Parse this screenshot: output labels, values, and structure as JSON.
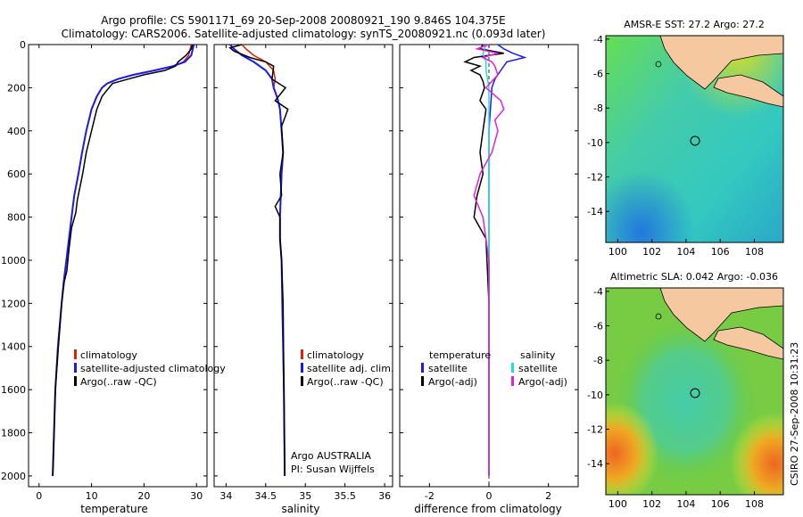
{
  "title": {
    "line1": "Argo profile: CS 5901171_69 20-Sep-2008 20080921_190 9.846S 104.375E",
    "line2": "Climatology: CARS2006. Satellite-adjusted climatology: synTS_20080921.nc (0.093d later)"
  },
  "side_label": "CSIRO 27-Sep-2008 10:31:23",
  "colors": {
    "clim": "#dd2200",
    "sat": "#1a1aee",
    "argo": "#000000",
    "sat_diff": "#22dddd",
    "argo_diff": "#dd22dd"
  },
  "chart_data": [
    {
      "type": "line",
      "name": "temperature-profile",
      "xlabel": "temperature",
      "xlim": [
        -2,
        32
      ],
      "ylim": [
        2050,
        0
      ],
      "xticks": [
        0,
        10,
        20,
        30
      ],
      "yticks": [
        0,
        200,
        400,
        600,
        800,
        1000,
        1200,
        1400,
        1600,
        1800,
        2000
      ],
      "legend": [
        "climatology",
        "satellite-adjusted climatology",
        "Argo(..raw -QC)"
      ],
      "series": [
        {
          "name": "climatology",
          "color": "clim",
          "x": [
            29,
            28.8,
            28.5,
            27.5,
            25.5,
            22,
            18,
            15,
            13,
            12,
            11,
            10,
            9,
            8.2,
            7.5,
            6.7,
            6.2,
            5.7,
            5.2,
            4.7,
            4.3,
            3.6,
            3.1,
            2.6
          ],
          "y": [
            0,
            20,
            50,
            80,
            100,
            120,
            140,
            160,
            180,
            200,
            240,
            300,
            400,
            500,
            600,
            700,
            800,
            900,
            1000,
            1100,
            1200,
            1400,
            1600,
            2000
          ]
        },
        {
          "name": "satellite-adjusted climatology",
          "color": "sat",
          "x": [
            29.5,
            29.3,
            29.0,
            27.8,
            25.5,
            22,
            18,
            15,
            13,
            12,
            11,
            10,
            9,
            8.2,
            7.5,
            6.7,
            6.2,
            5.7,
            5.2,
            4.7,
            4.3,
            3.6,
            3.1,
            2.6
          ],
          "y": [
            0,
            20,
            50,
            80,
            100,
            120,
            140,
            160,
            180,
            200,
            240,
            300,
            400,
            500,
            600,
            700,
            800,
            900,
            1000,
            1100,
            1200,
            1400,
            1600,
            2000
          ]
        },
        {
          "name": "Argo",
          "color": "argo",
          "x": [
            29.2,
            29,
            28,
            26.5,
            26,
            24,
            20,
            17,
            14,
            13,
            12,
            11,
            10,
            9,
            8.3,
            7.3,
            7,
            6.2,
            5.7,
            5.3,
            4.8,
            4.3,
            3.7,
            3.1,
            2.6
          ],
          "y": [
            0,
            20,
            50,
            80,
            100,
            120,
            140,
            160,
            180,
            210,
            240,
            300,
            400,
            500,
            600,
            720,
            780,
            850,
            950,
            1050,
            1100,
            1200,
            1400,
            1600,
            2000
          ]
        }
      ]
    },
    {
      "type": "line",
      "name": "salinity-profile",
      "xlabel": "salinity",
      "xlim": [
        33.85,
        36.1
      ],
      "ylim": [
        2050,
        0
      ],
      "xticks": [
        34,
        34.5,
        35,
        35.5,
        36
      ],
      "legend": [
        "climatology",
        "satellite adj. clim.",
        "Argo(..raw -QC)"
      ],
      "annotation": [
        "Argo AUSTRALIA",
        "PI: Susan Wijffels"
      ],
      "series": [
        {
          "name": "climatology",
          "color": "clim",
          "x": [
            34.2,
            34.25,
            34.35,
            34.5,
            34.6,
            34.62,
            34.6,
            34.65,
            34.68,
            34.7,
            34.72,
            34.7,
            34.69,
            34.68,
            34.68,
            34.7,
            34.71,
            34.72,
            34.73,
            34.74
          ],
          "y": [
            0,
            20,
            50,
            80,
            120,
            160,
            200,
            250,
            300,
            400,
            500,
            600,
            700,
            800,
            900,
            1000,
            1200,
            1400,
            1600,
            2000
          ]
        },
        {
          "name": "satellite adj. clim.",
          "color": "sat",
          "x": [
            34.05,
            34.1,
            34.2,
            34.35,
            34.5,
            34.58,
            34.6,
            34.65,
            34.68,
            34.7,
            34.72,
            34.7,
            34.69,
            34.68,
            34.68,
            34.7,
            34.71,
            34.72,
            34.73,
            34.74
          ],
          "y": [
            0,
            20,
            50,
            80,
            120,
            160,
            200,
            250,
            300,
            400,
            500,
            600,
            700,
            800,
            900,
            1000,
            1200,
            1400,
            1600,
            2000
          ]
        },
        {
          "name": "Argo",
          "color": "argo",
          "x": [
            34.2,
            34.05,
            34.1,
            34.3,
            34.5,
            34.6,
            34.58,
            34.75,
            34.62,
            34.78,
            34.7,
            34.72,
            34.68,
            34.7,
            34.62,
            34.68,
            34.68,
            34.7,
            34.72,
            34.73,
            34.74
          ],
          "y": [
            0,
            15,
            30,
            60,
            80,
            100,
            160,
            200,
            260,
            300,
            380,
            500,
            600,
            700,
            750,
            800,
            900,
            1000,
            1200,
            1600,
            2000
          ]
        }
      ]
    },
    {
      "type": "line",
      "name": "difference-profile",
      "xlabel": "difference from climatology",
      "xlim": [
        -3,
        3
      ],
      "ylim": [
        2050,
        0
      ],
      "xticks": [
        -2,
        0,
        2
      ],
      "legend_temperature": [
        "temperature",
        "satellite",
        "Argo(-adj)"
      ],
      "legend_salinity": [
        "salinity",
        "satellite",
        "Argo(-adj)"
      ],
      "series": [
        {
          "name": "temperature satellite",
          "color": "sat",
          "x": [
            0.3,
            0.5,
            0.8,
            1.2,
            0.6,
            0.4,
            0.2,
            0.1,
            0,
            0,
            0,
            0
          ],
          "y": [
            0,
            20,
            40,
            60,
            80,
            120,
            160,
            200,
            400,
            800,
            1200,
            2000
          ]
        },
        {
          "name": "temperature Argo",
          "color": "argo",
          "x": [
            -0.2,
            -0.3,
            0.5,
            -0.5,
            -0.8,
            -0.3,
            -0.6,
            -0.3,
            -0.2,
            -0.15,
            -0.3,
            -0.1,
            -0.2,
            -0.3,
            -0.2,
            -0.4,
            -0.5,
            -0.1,
            0,
            0
          ],
          "y": [
            0,
            20,
            40,
            60,
            80,
            100,
            120,
            140,
            170,
            200,
            260,
            300,
            400,
            500,
            600,
            700,
            800,
            900,
            1200,
            2000
          ]
        },
        {
          "name": "salinity satellite",
          "color": "sat_diff",
          "x": [
            -0.1,
            -0.2,
            -0.1,
            -0.1,
            0,
            0,
            0,
            0
          ],
          "y": [
            0,
            40,
            80,
            120,
            200,
            400,
            1000,
            2000
          ]
        },
        {
          "name": "salinity Argo",
          "color": "argo_diff",
          "x": [
            0,
            -0.4,
            0.3,
            -0.2,
            0.1,
            0.2,
            0.3,
            -0.1,
            0.4,
            0.5,
            0.2,
            0.3,
            0.1,
            -0.3,
            -0.5,
            -0.2,
            0,
            0
          ],
          "y": [
            0,
            20,
            40,
            60,
            80,
            100,
            140,
            200,
            260,
            300,
            350,
            400,
            500,
            600,
            700,
            800,
            1000,
            2000
          ]
        }
      ]
    },
    {
      "type": "heatmap",
      "name": "sst-map",
      "title": "AMSR-E SST: 27.2  Argo: 27.2",
      "xlim": [
        99.3,
        109.7
      ],
      "ylim": [
        -15.8,
        -3.8
      ],
      "xticks": [
        100,
        102,
        104,
        106,
        108
      ],
      "yticks": [
        -4,
        -6,
        -8,
        -10,
        -12,
        -14
      ],
      "marker": {
        "lon": 104.375,
        "lat": -9.846
      }
    },
    {
      "type": "heatmap",
      "name": "sla-map",
      "title": "Altimetric SLA: 0.042  Argo: -0.036",
      "xlim": [
        99.3,
        109.7
      ],
      "ylim": [
        -15.8,
        -3.8
      ],
      "xticks": [
        100,
        102,
        104,
        106,
        108
      ],
      "yticks": [
        -4,
        -6,
        -8,
        -10,
        -12,
        -14
      ],
      "marker": {
        "lon": 104.375,
        "lat": -9.846
      }
    }
  ]
}
